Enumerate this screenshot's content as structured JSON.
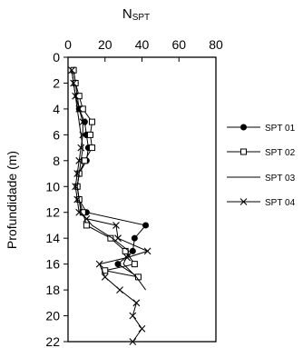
{
  "chart_data": {
    "type": "line",
    "title_main": "N",
    "title_sub": "SPT",
    "ylabel": "Profundidade (m)",
    "xlabel": "",
    "x_axis_position": "top",
    "xlim": [
      0,
      80
    ],
    "ylim": [
      0,
      22
    ],
    "y_inverted": true,
    "x_ticks": [
      0,
      20,
      40,
      60,
      80
    ],
    "y_ticks": [
      0,
      2,
      4,
      6,
      8,
      10,
      12,
      14,
      16,
      18,
      20,
      22
    ],
    "grid": false,
    "legend_position": "right",
    "series": [
      {
        "name": "SPT 01",
        "marker": "filled-circle",
        "x": [
          3,
          4,
          5,
          6,
          9,
          10,
          11,
          10,
          6,
          5,
          6,
          10,
          42,
          36,
          35,
          27,
          38
        ],
        "depth": [
          1,
          2,
          3,
          4,
          5,
          6,
          7,
          8,
          9,
          10,
          11,
          12,
          13,
          14,
          15,
          16,
          17
        ]
      },
      {
        "name": "SPT 02",
        "marker": "open-square",
        "x": [
          3,
          4,
          6,
          8,
          13,
          12,
          13,
          9,
          6,
          5,
          6,
          8,
          10,
          23,
          31,
          36,
          20,
          38
        ],
        "depth": [
          1,
          2,
          3,
          4,
          5,
          6,
          7,
          8,
          9,
          10,
          11,
          12,
          13,
          14,
          15,
          16,
          16.5,
          17
        ]
      },
      {
        "name": "SPT 03",
        "marker": "none",
        "x": [
          2,
          3,
          4,
          5,
          6,
          7,
          8,
          7,
          6,
          5,
          6,
          7,
          13,
          24,
          33,
          30,
          37,
          42
        ],
        "depth": [
          1,
          2,
          3,
          4,
          5,
          6,
          7,
          8,
          9,
          10,
          11,
          12,
          13,
          14,
          15,
          16,
          17,
          18
        ]
      },
      {
        "name": "SPT 04",
        "marker": "x",
        "x": [
          2,
          3,
          4,
          6,
          8,
          8,
          7,
          6,
          5,
          4,
          5,
          6,
          10,
          26,
          27,
          43,
          32,
          17,
          20,
          28,
          37,
          35,
          40,
          35
        ],
        "depth": [
          1,
          2,
          3,
          4,
          5,
          6,
          7,
          8,
          9,
          10,
          11,
          12,
          12.5,
          13,
          14,
          15,
          15.5,
          16,
          17,
          18,
          19,
          20,
          21,
          22
        ]
      }
    ]
  }
}
